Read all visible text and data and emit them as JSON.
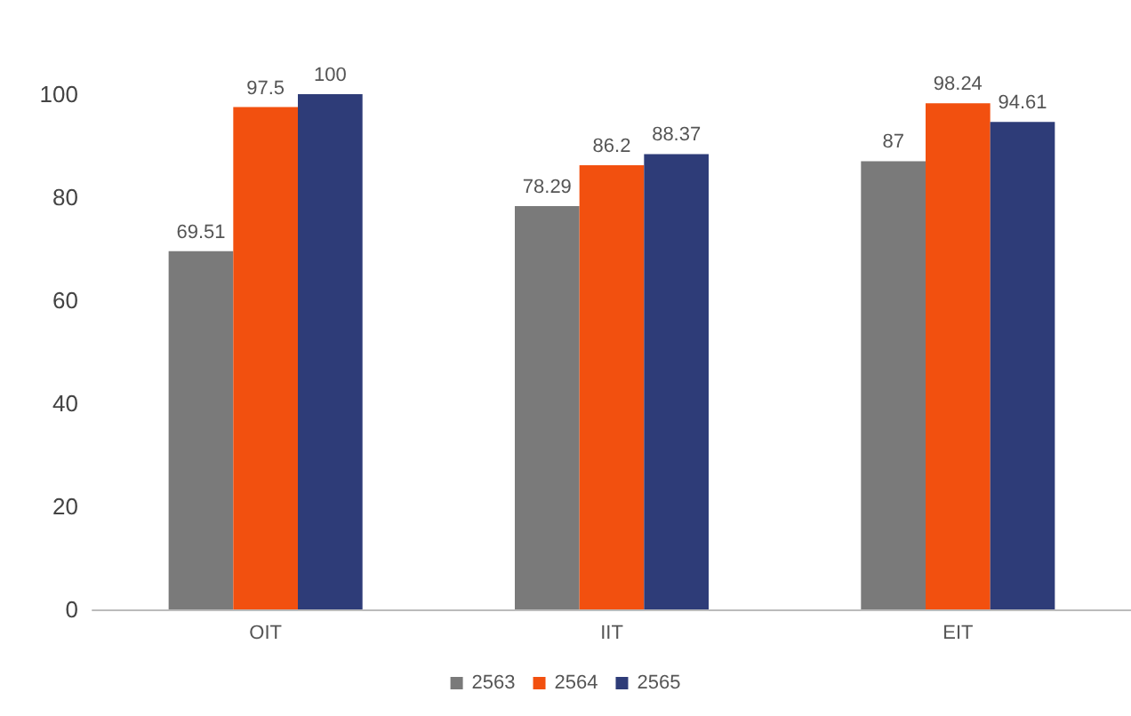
{
  "chart_data": {
    "type": "bar",
    "categories": [
      "OIT",
      "IIT",
      "EIT"
    ],
    "series": [
      {
        "name": "2563",
        "color": "#7a7a7a",
        "values": [
          69.51,
          78.29,
          87
        ]
      },
      {
        "name": "2564",
        "color": "#f2500f",
        "values": [
          97.5,
          86.2,
          98.24
        ]
      },
      {
        "name": "2565",
        "color": "#2e3c78",
        "values": [
          100,
          88.37,
          94.61
        ]
      }
    ],
    "ylim": [
      0,
      100
    ],
    "yticks": [
      0,
      20,
      40,
      60,
      80,
      100
    ],
    "grid": false,
    "legend": "bottom",
    "data_labels": true
  }
}
